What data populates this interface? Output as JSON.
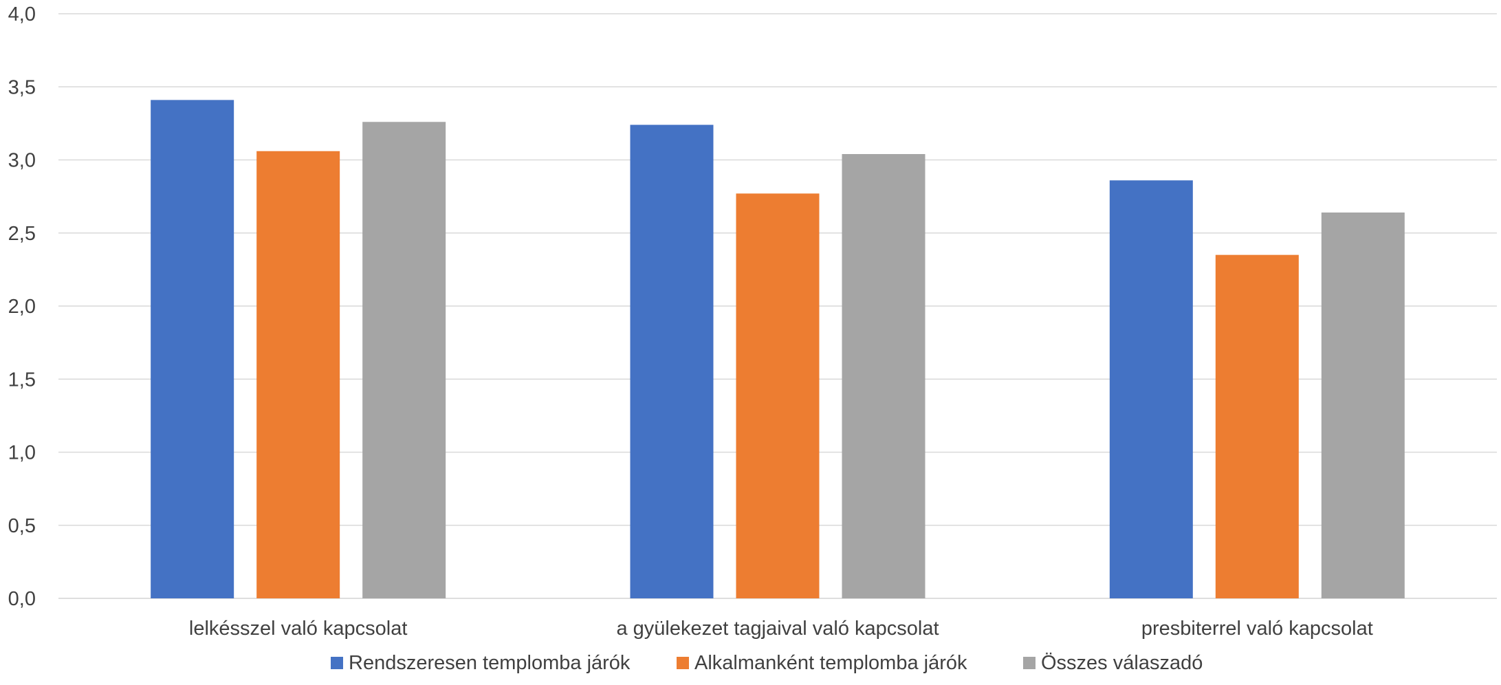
{
  "chart_data": {
    "type": "bar",
    "categories": [
      "lelkésszel való kapcsolat",
      "a gyülekezet tagjaival való kapcsolat",
      "presbiterrel való kapcsolat"
    ],
    "series": [
      {
        "name": "Rendszeresen templomba járók",
        "color": "#4472C4",
        "values": [
          3.41,
          3.24,
          2.86
        ]
      },
      {
        "name": "Alkalmanként templomba járók",
        "color": "#ED7D31",
        "values": [
          3.06,
          2.77,
          2.35
        ]
      },
      {
        "name": "Összes válaszadó",
        "color": "#A5A5A5",
        "values": [
          3.26,
          3.04,
          2.64
        ]
      }
    ],
    "yticks": [
      "0,0",
      "0,5",
      "1,0",
      "1,5",
      "2,0",
      "2,5",
      "3,0",
      "3,5",
      "4,0"
    ],
    "ylim": [
      0,
      4
    ],
    "grid": true,
    "legend_position": "bottom"
  }
}
